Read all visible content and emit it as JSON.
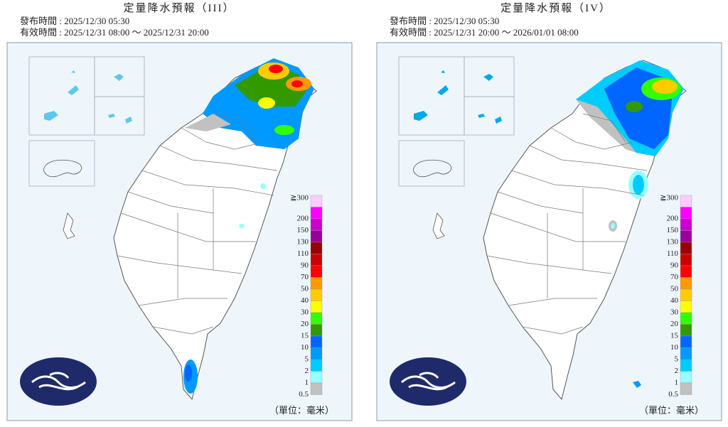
{
  "panels": [
    {
      "title": "定量降水預報（III）",
      "issued": "發布時間 : 2025/12/30 05:30",
      "valid": "有效時間 : 2025/12/31 08:00 ～ 2025/12/31 20:00",
      "unit": "（單位：毫米）"
    },
    {
      "title": "定量降水預報（IV）",
      "issued": "發布時間 : 2025/12/30 05:30",
      "valid": "有效時間 : 2025/12/31 20:00 ～ 2026/01/01 08:00",
      "unit": "（單位：毫米）"
    }
  ],
  "legend": {
    "labels": [
      "≧300",
      "200",
      "150",
      "130",
      "110",
      "90",
      "70",
      "50",
      "40",
      "30",
      "20",
      "15",
      "10",
      "5",
      "2",
      "1",
      "0.5"
    ],
    "colors": [
      "#ffccff",
      "#ff00ff",
      "#cc00cc",
      "#990099",
      "#990000",
      "#cc0000",
      "#ff0000",
      "#ff9900",
      "#ffcc00",
      "#ffff00",
      "#33ff00",
      "#339900",
      "#0066ff",
      "#0099ff",
      "#00ccff",
      "#99ffff",
      "#c1c1c1"
    ]
  }
}
